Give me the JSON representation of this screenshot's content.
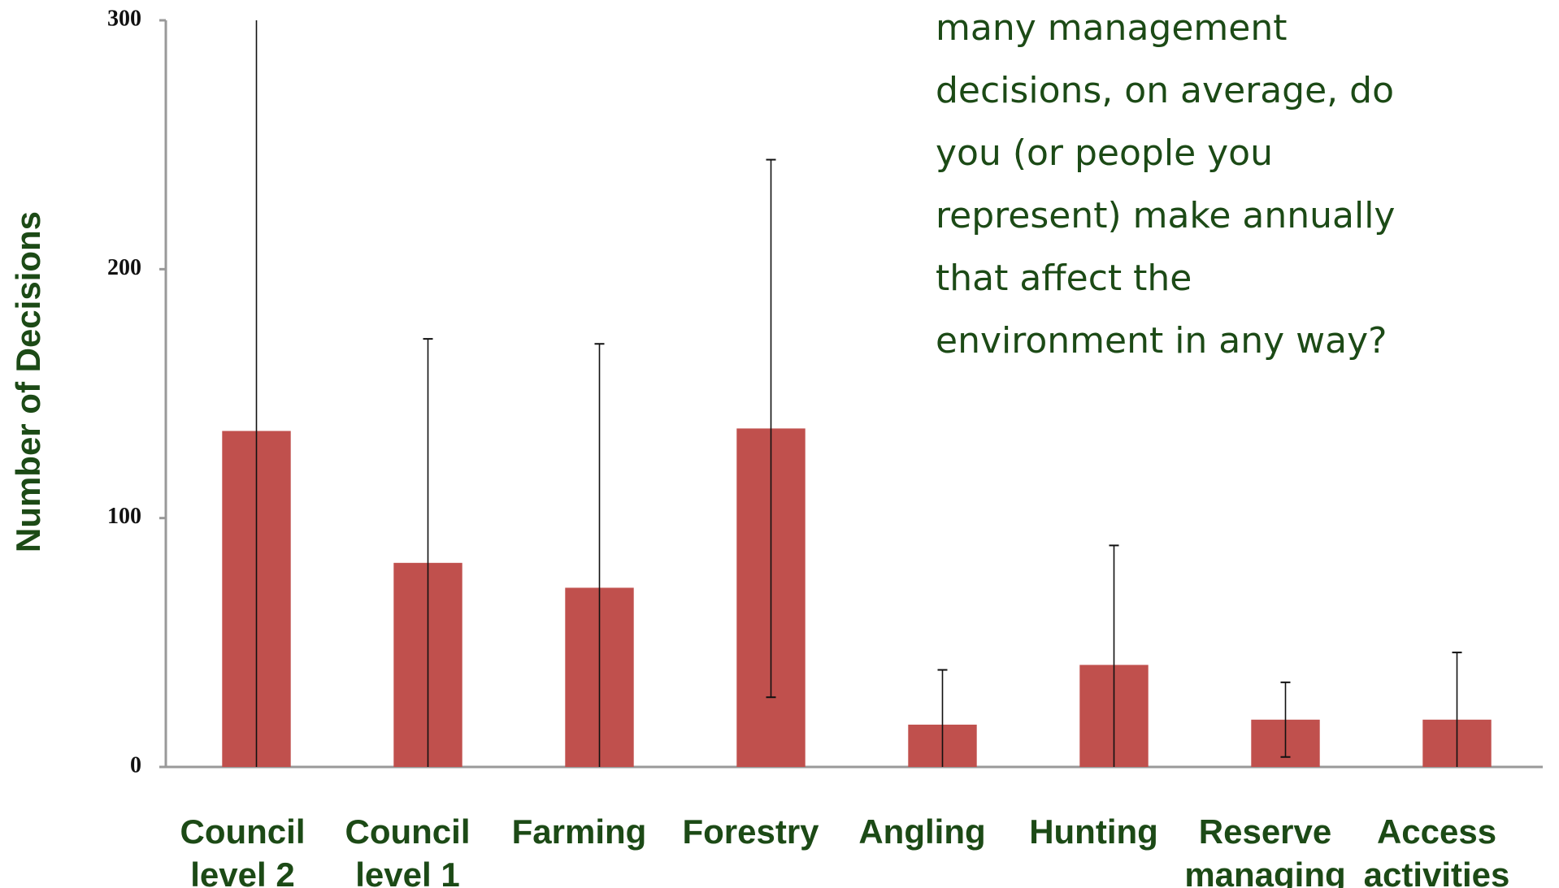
{
  "chart_data": {
    "type": "bar",
    "annotation": [
      "many management",
      "decisions, on average, do",
      "you (or people you",
      "represent) make annually",
      "that affect the",
      "environment in any way?"
    ],
    "ylabel": "Number of Decisions",
    "categories": [
      [
        "Council",
        "level 2"
      ],
      [
        "Council",
        "level 1"
      ],
      [
        "Farming"
      ],
      [
        "Forestry"
      ],
      [
        "Angling"
      ],
      [
        "Hunting"
      ],
      [
        "Reserve",
        "managing"
      ],
      [
        "Access",
        "activities"
      ]
    ],
    "values": [
      135,
      82,
      72,
      136,
      17,
      41,
      19,
      19
    ],
    "errors": [
      170,
      90,
      98,
      108,
      22,
      48,
      15,
      27
    ],
    "color": "#c0504d",
    "ylim": [
      0,
      300
    ],
    "yticks": [
      0,
      100,
      200,
      300
    ]
  }
}
